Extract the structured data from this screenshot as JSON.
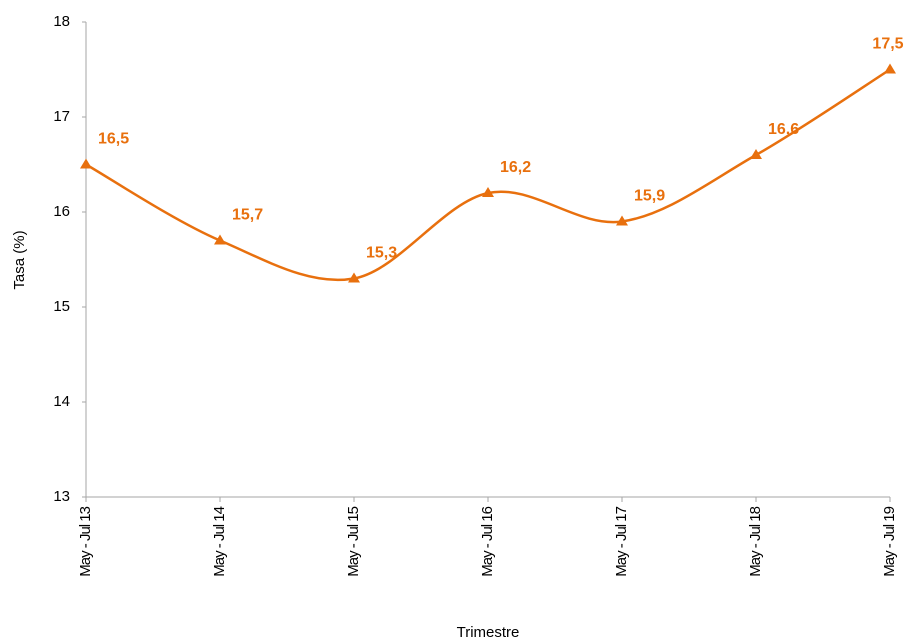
{
  "chart_data": {
    "type": "line",
    "x_label": "Trimestre",
    "y_label": "Tasa (%)",
    "categories": [
      "May - Jul 13",
      "May - Jul 14",
      "May - Jul 15",
      "May - Jul 16",
      "May - Jul 17",
      "May - Jul 18",
      "May - Jul 19"
    ],
    "series": [
      {
        "name": "Tasa",
        "color": "#e8700e",
        "values": [
          16.5,
          15.7,
          15.3,
          16.2,
          15.9,
          16.6,
          17.5
        ],
        "value_labels": [
          "16,5",
          "15,7",
          "15,3",
          "16,2",
          "15,9",
          "16,6",
          "17,5"
        ]
      }
    ],
    "ylim": [
      13,
      18
    ],
    "yticks": [
      13,
      14,
      15,
      16,
      17,
      18
    ],
    "smooth": true,
    "grid": false,
    "legend": false
  }
}
